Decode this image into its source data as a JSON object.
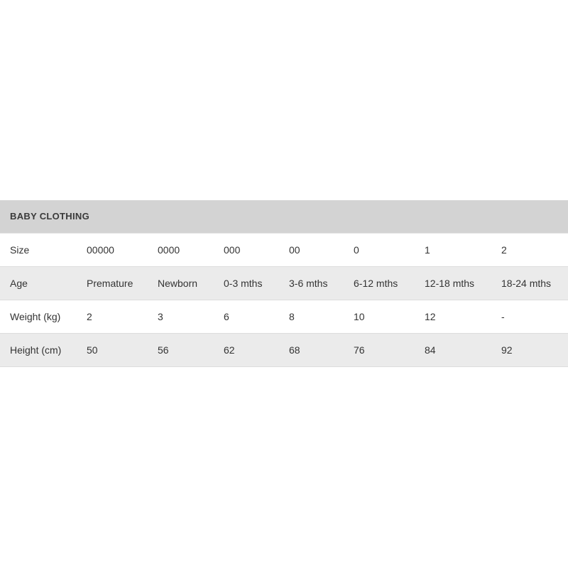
{
  "table": {
    "title": "BABY CLOTHING",
    "rows": [
      {
        "label": "Size",
        "values": [
          "00000",
          "0000",
          "000",
          "00",
          "0",
          "1",
          "2"
        ]
      },
      {
        "label": "Age",
        "values": [
          "Premature",
          "Newborn",
          "0-3 mths",
          "3-6 mths",
          "6-12 mths",
          "12-18 mths",
          "18-24 mths"
        ]
      },
      {
        "label": "Weight (kg)",
        "values": [
          "2",
          "3",
          "6",
          "8",
          "10",
          "12",
          "-"
        ]
      },
      {
        "label": "Height (cm)",
        "values": [
          "50",
          "56",
          "62",
          "68",
          "76",
          "84",
          "92"
        ]
      }
    ]
  }
}
